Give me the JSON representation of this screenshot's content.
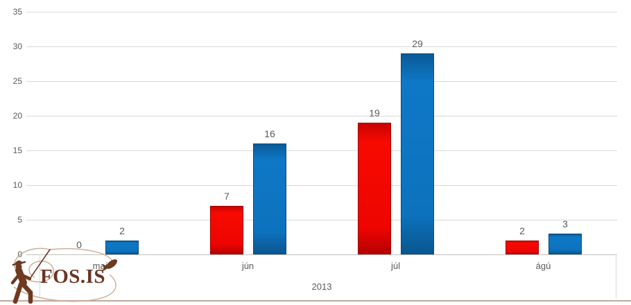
{
  "chart_data": {
    "type": "bar",
    "title": "",
    "categories": [
      "maí",
      "jún",
      "júl",
      "ágú"
    ],
    "series": [
      {
        "label": "",
        "color": "#ee0400",
        "values": [
          0,
          7,
          19,
          2
        ]
      },
      {
        "label": "",
        "color": "#0d72be",
        "values": [
          2,
          16,
          29,
          3
        ]
      }
    ],
    "data_labels_visible": true,
    "xlabel": "2013",
    "ylabel": "",
    "ylim": [
      0,
      35
    ],
    "ytick_interval": 5,
    "yticks": [
      "35",
      "30",
      "25",
      "20",
      "15",
      "10",
      "5",
      "0"
    ],
    "grid": "horizontal",
    "legend": "none",
    "gridline_color": "#d9d9d9",
    "axis_text_color": "#595959"
  },
  "logo": {
    "text": "FOS.IS",
    "icon": "fisherman-casting-with-line-and-fish",
    "text_color": "#6b3423",
    "line_color": "#c9ab92",
    "silhouette_color": "#6e3a20"
  },
  "footer": {
    "rule_color": "#c5a896"
  }
}
